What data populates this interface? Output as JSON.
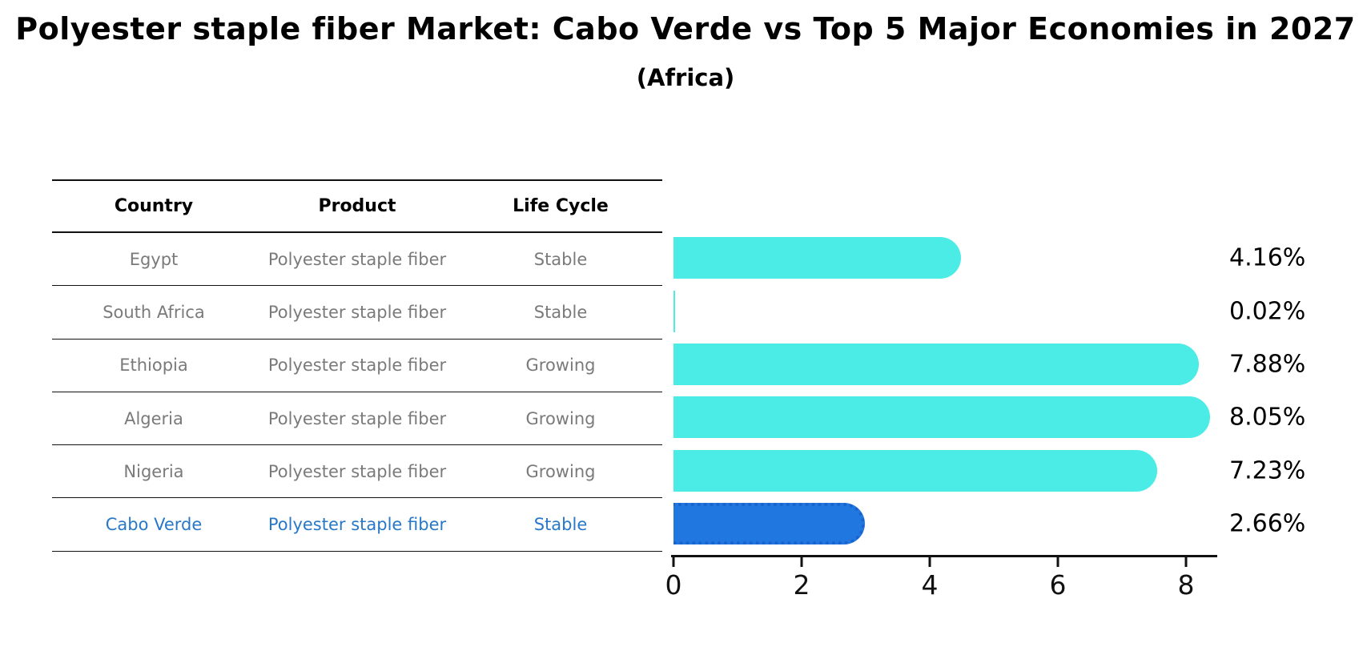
{
  "title": "Polyester staple fiber Market: Cabo Verde vs Top 5 Major Economies in 2027",
  "subtitle": "(Africa)",
  "table": {
    "headers": {
      "country": "Country",
      "product": "Product",
      "life_cycle": "Life Cycle"
    },
    "rows": [
      {
        "country": "Egypt",
        "product": "Polyester staple fiber",
        "life_cycle": "Stable",
        "highlight": false
      },
      {
        "country": "South Africa",
        "product": "Polyester staple fiber",
        "life_cycle": "Stable",
        "highlight": false
      },
      {
        "country": "Ethiopia",
        "product": "Polyester staple fiber",
        "life_cycle": "Growing",
        "highlight": false
      },
      {
        "country": "Algeria",
        "product": "Polyester staple fiber",
        "life_cycle": "Growing",
        "highlight": false
      },
      {
        "country": "Nigeria",
        "product": "Polyester staple fiber",
        "life_cycle": "Growing",
        "highlight": false
      },
      {
        "country": "Cabo Verde",
        "product": "Polyester staple fiber",
        "life_cycle": "Stable",
        "highlight": true
      }
    ]
  },
  "chart_data": {
    "type": "bar",
    "orientation": "horizontal",
    "categories": [
      "Egypt",
      "South Africa",
      "Ethiopia",
      "Algeria",
      "Nigeria",
      "Cabo Verde"
    ],
    "values": [
      4.16,
      0.02,
      7.88,
      8.05,
      7.23,
      2.66
    ],
    "value_labels": [
      "4.16%",
      "0.02%",
      "7.88%",
      "8.05%",
      "7.23%",
      "2.66%"
    ],
    "highlight_index": 5,
    "xticks": [
      0,
      2,
      4,
      6,
      8
    ],
    "xlim": [
      0,
      8.45
    ],
    "grid": false,
    "legend": "none",
    "bar_color": "#4bebe6",
    "highlight_color": "#2077e0",
    "highlight_border_color": "#1b63cc",
    "highlight_text_color": "#2878c8"
  }
}
